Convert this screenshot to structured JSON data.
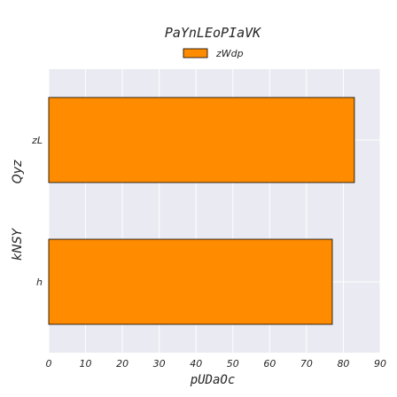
{
  "chart_data": {
    "type": "bar",
    "orientation": "horizontal",
    "title": "PaYnLEoPIaVK",
    "xlabel": "pUDaOc",
    "ylabel_lines": [
      "Qyz",
      "kNSY"
    ],
    "categories": [
      "zL",
      "h"
    ],
    "series": [
      {
        "name": "zWdp",
        "values": [
          83,
          77
        ]
      }
    ],
    "xlim": [
      0,
      90
    ],
    "xticks": [
      0,
      10,
      20,
      30,
      40,
      50,
      60,
      70,
      80,
      90
    ],
    "grid": true,
    "legend_position": "top-center",
    "colors": {
      "bar": "#ff8c00",
      "bar_edge": "#000000",
      "plot_background": "#eaeaf2",
      "grid": "#ffffff"
    }
  }
}
